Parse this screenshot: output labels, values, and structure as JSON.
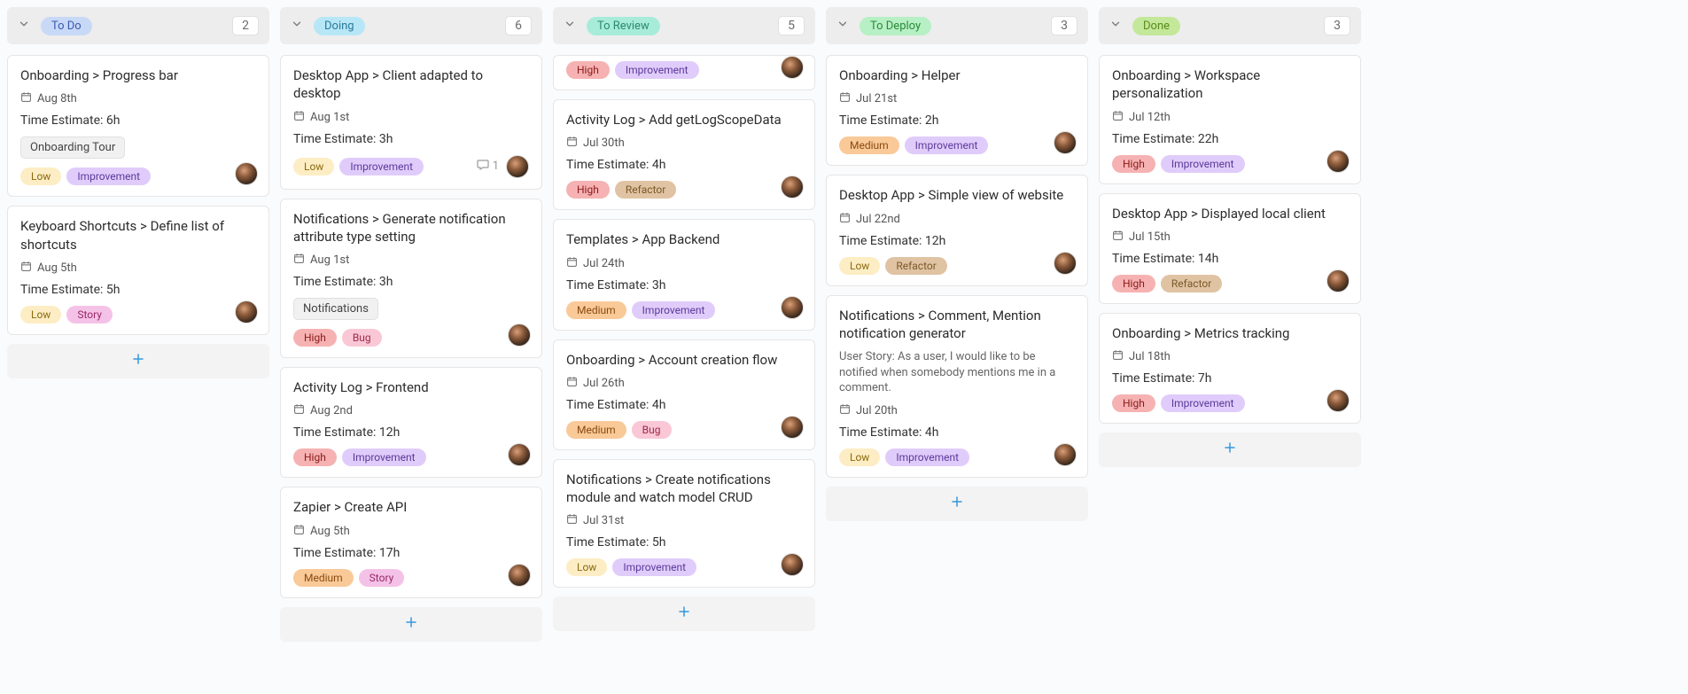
{
  "tag_styles": {
    "Low": {
      "bg": "#fdedc4",
      "fg": "#8a6a10"
    },
    "Medium": {
      "bg": "#f9c998",
      "fg": "#8a4a10"
    },
    "High": {
      "bg": "#f6b2b2",
      "fg": "#8a1a1a"
    },
    "Improvement": {
      "bg": "#e0ccfa",
      "fg": "#5a3a9a"
    },
    "Story": {
      "bg": "#f5c2e7",
      "fg": "#9a2a6a"
    },
    "Bug": {
      "bg": "#f9c7d5",
      "fg": "#a02a4a"
    },
    "Refactor": {
      "bg": "#e0c3a3",
      "fg": "#7a5a2a"
    }
  },
  "columns": [
    {
      "name": "To Do",
      "count": 2,
      "status_color": {
        "bg": "#c8d9f7",
        "fg": "#3a5ab0"
      },
      "cards": [
        {
          "title": "Onboarding > Progress bar",
          "date": "Aug 8th",
          "estimate": "Time Estimate: 6h",
          "subtask": "Onboarding Tour",
          "tags": [
            "Low",
            "Improvement"
          ],
          "avatar": true
        },
        {
          "title": "Keyboard Shortcuts > Define list of shortcuts",
          "date": "Aug 5th",
          "estimate": "Time Estimate: 5h",
          "tags": [
            "Low",
            "Story"
          ],
          "avatar": true
        }
      ]
    },
    {
      "name": "Doing",
      "count": 6,
      "status_color": {
        "bg": "#b7e7f6",
        "fg": "#2a7a9a"
      },
      "cards": [
        {
          "title": "Desktop App > Client adapted to desktop",
          "date": "Aug 1st",
          "estimate": "Time Estimate: 3h",
          "tags": [
            "Low",
            "Improvement"
          ],
          "comments": 1,
          "avatar": true
        },
        {
          "title": "Notifications > Generate notification attribute type setting",
          "date": "Aug 1st",
          "estimate": "Time Estimate: 3h",
          "subtask": "Notifications",
          "tags": [
            "High",
            "Bug"
          ],
          "avatar": true
        },
        {
          "title": "Activity Log > Frontend",
          "date": "Aug 2nd",
          "estimate": "Time Estimate: 12h",
          "tags": [
            "High",
            "Improvement"
          ],
          "avatar": true
        },
        {
          "title": "Zapier > Create API",
          "date": "Aug 5th",
          "estimate": "Time Estimate: 17h",
          "tags": [
            "Medium",
            "Story"
          ],
          "avatar": true
        }
      ]
    },
    {
      "name": "To Review",
      "count": 5,
      "status_color": {
        "bg": "#a7ecd9",
        "fg": "#2a8a6a"
      },
      "cards": [
        {
          "partial_top": true,
          "tags": [
            "High",
            "Improvement"
          ],
          "avatar": true
        },
        {
          "title": "Activity Log > Add getLogScopeData",
          "date": "Jul 30th",
          "estimate": "Time Estimate: 4h",
          "tags": [
            "High",
            "Refactor"
          ],
          "avatar": true
        },
        {
          "title": "Templates > App Backend",
          "date": "Jul 24th",
          "estimate": "Time Estimate: 3h",
          "tags": [
            "Medium",
            "Improvement"
          ],
          "avatar": true
        },
        {
          "title": "Onboarding > Account creation flow",
          "date": "Jul 26th",
          "estimate": "Time Estimate: 4h",
          "tags": [
            "Medium",
            "Bug"
          ],
          "avatar": true
        },
        {
          "title": "Notifications > Create notifications module and watch model CRUD",
          "date": "Jul 31st",
          "estimate": "Time Estimate: 5h",
          "tags": [
            "Low",
            "Improvement"
          ],
          "avatar": true
        }
      ]
    },
    {
      "name": "To Deploy",
      "count": 3,
      "status_color": {
        "bg": "#b7f0c4",
        "fg": "#2a8a3a"
      },
      "cards": [
        {
          "title": "Onboarding > Helper",
          "date": "Jul 21st",
          "estimate": "Time Estimate: 2h",
          "tags": [
            "Medium",
            "Improvement"
          ],
          "avatar": true
        },
        {
          "title": "Desktop App > Simple view of website",
          "date": "Jul 22nd",
          "estimate": "Time Estimate: 12h",
          "tags": [
            "Low",
            "Refactor"
          ],
          "avatar": true
        },
        {
          "title": "Notifications > Comment, Mention notification generator",
          "description": "User Story: As a user, I would like to be notified when somebody mentions me in a comment.",
          "date": "Jul 20th",
          "estimate": "Time Estimate: 4h",
          "tags": [
            "Low",
            "Improvement"
          ],
          "avatar": true
        }
      ]
    },
    {
      "name": "Done",
      "count": 3,
      "status_color": {
        "bg": "#c4e89a",
        "fg": "#5a8a1a"
      },
      "cards": [
        {
          "title": "Onboarding > Workspace personalization",
          "date": "Jul 12th",
          "estimate": "Time Estimate: 22h",
          "tags": [
            "High",
            "Improvement"
          ],
          "avatar": true
        },
        {
          "title": "Desktop App > Displayed local client",
          "date": "Jul 15th",
          "estimate": "Time Estimate: 14h",
          "tags": [
            "High",
            "Refactor"
          ],
          "avatar": true
        },
        {
          "title": "Onboarding > Metrics tracking",
          "date": "Jul 18th",
          "estimate": "Time Estimate: 7h",
          "tags": [
            "High",
            "Improvement"
          ],
          "avatar": true
        }
      ]
    }
  ]
}
